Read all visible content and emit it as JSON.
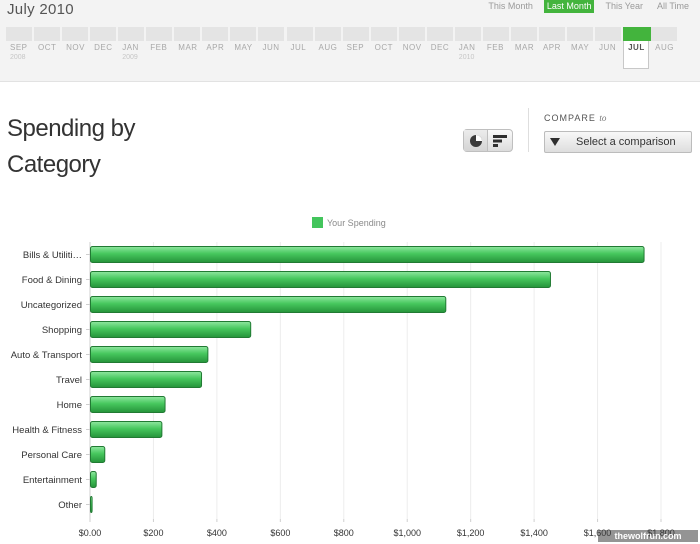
{
  "header": {
    "period_title": "July 2010",
    "range_tabs": [
      {
        "label": "This Month",
        "active": false
      },
      {
        "label": "Last Month",
        "active": true
      },
      {
        "label": "This Year",
        "active": false
      },
      {
        "label": "All Time",
        "active": false
      }
    ],
    "timeline": [
      {
        "label": "SEP",
        "year": "2008"
      },
      {
        "label": "OCT",
        "year": ""
      },
      {
        "label": "NOV",
        "year": ""
      },
      {
        "label": "DEC",
        "year": ""
      },
      {
        "label": "JAN",
        "year": "2009"
      },
      {
        "label": "FEB",
        "year": ""
      },
      {
        "label": "MAR",
        "year": ""
      },
      {
        "label": "APR",
        "year": ""
      },
      {
        "label": "MAY",
        "year": ""
      },
      {
        "label": "JUN",
        "year": ""
      },
      {
        "label": "JUL",
        "year": ""
      },
      {
        "label": "AUG",
        "year": ""
      },
      {
        "label": "SEP",
        "year": ""
      },
      {
        "label": "OCT",
        "year": ""
      },
      {
        "label": "NOV",
        "year": ""
      },
      {
        "label": "DEC",
        "year": ""
      },
      {
        "label": "JAN",
        "year": "2010"
      },
      {
        "label": "FEB",
        "year": ""
      },
      {
        "label": "MAR",
        "year": ""
      },
      {
        "label": "APR",
        "year": ""
      },
      {
        "label": "MAY",
        "year": ""
      },
      {
        "label": "JUN",
        "year": ""
      },
      {
        "label": "JUL",
        "year": "",
        "selected": true
      },
      {
        "label": "AUG",
        "year": ""
      }
    ]
  },
  "main": {
    "heading_line1": "Spending by",
    "heading_line2": "Category",
    "view_toggle": [
      {
        "icon": "pie-chart-icon",
        "active": true
      },
      {
        "icon": "bar-chart-icon",
        "active": false
      }
    ],
    "compare_label": "COMPARE",
    "compare_label_suffix": "to",
    "compare_select": "Select a comparison",
    "select_icon": "triangle-down-icon"
  },
  "watermark": "thewolfrun.com",
  "colors": {
    "accent": "#43b43d",
    "bar_fill": "#3dbf55",
    "bar_stroke": "#217a33"
  },
  "chart_data": {
    "type": "bar",
    "orientation": "horizontal",
    "title": "",
    "legend": [
      "Your Spending"
    ],
    "legend_position": "top-center",
    "categories": [
      "Bills & Utiliti…",
      "Food & Dining",
      "Uncategorized",
      "Shopping",
      "Auto & Transport",
      "Travel",
      "Home",
      "Health & Fitness",
      "Personal Care",
      "Entertainment",
      "Other"
    ],
    "series": [
      {
        "name": "Your Spending",
        "values": [
          1745,
          1450,
          1120,
          505,
          370,
          350,
          235,
          225,
          45,
          18,
          5
        ]
      }
    ],
    "xlim": [
      0,
      1800
    ],
    "x_ticks": [
      0,
      200,
      400,
      600,
      800,
      1000,
      1200,
      1400,
      1600,
      1800
    ],
    "x_tick_labels": [
      "$0.00",
      "$200",
      "$400",
      "$600",
      "$800",
      "$1,000",
      "$1,200",
      "$1,400",
      "$1,600",
      "$1,800"
    ],
    "grid": true
  }
}
